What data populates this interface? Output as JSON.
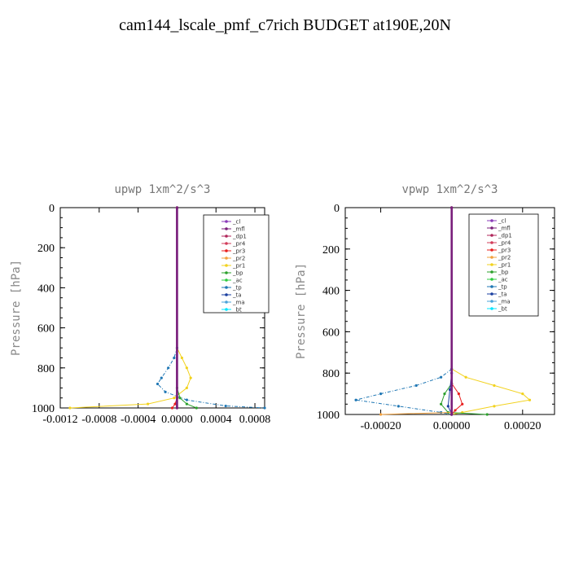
{
  "page": {
    "title": "cam144_lscale_pmf_c7rich  BUDGET at190E,20N"
  },
  "legend_colors": {
    "_cl": "#8a3ab9",
    "_mfl": "#7a1f7a",
    "_dp1": "#b0265a",
    "_pr4": "#d23c5a",
    "_pr3": "#e81e1e",
    "_pr2": "#f2a03c",
    "_pr1": "#f2d21e",
    "_bp": "#2ca02c",
    "_ac": "#2ecc40",
    "_tp": "#1f77b4",
    "_ta": "#1a3fa0",
    "_ma": "#4aa3d9",
    "_bt": "#00e5ff"
  },
  "chart_data": [
    {
      "type": "line",
      "title": "upwp  1xm^2/s^3",
      "xlabel": "",
      "ylabel": "Pressure [hPa]",
      "xlim": [
        -0.0012,
        0.0009
      ],
      "ylim": [
        1000,
        0
      ],
      "xticks": [
        -0.0012,
        -0.0008,
        -0.0004,
        0.0,
        0.0004,
        0.0008
      ],
      "xtick_labels": [
        "-0.0012",
        "-0.0008",
        "-0.0004",
        "0.0000",
        "0.0004",
        "0.0008"
      ],
      "yticks": [
        0,
        200,
        400,
        600,
        800,
        1000
      ],
      "legend": [
        "_cl",
        "_mfl",
        "_dp1",
        "_pr4",
        "_pr3",
        "_pr2",
        "_pr1",
        "_bp",
        "_ac",
        "_tp",
        "_ta",
        "_ma",
        "_bt"
      ],
      "legend_position": "top-right",
      "grid": false,
      "series": [
        {
          "name": "_pr1",
          "p": [
            0,
            700,
            750,
            800,
            850,
            900,
            950,
            980,
            1000
          ],
          "x": [
            0,
            0,
            5e-05,
            0.0001,
            0.00014,
            0.0001,
            -3e-05,
            -0.0003,
            -0.0011
          ]
        },
        {
          "name": "_tp",
          "p": [
            0,
            700,
            750,
            800,
            850,
            880,
            920,
            960,
            990,
            1000
          ],
          "x": [
            0,
            0,
            -3e-05,
            -9e-05,
            -0.00016,
            -0.0002,
            -0.00012,
            0.0001,
            0.0005,
            0.0009
          ]
        },
        {
          "name": "_bp",
          "p": [
            0,
            900,
            950,
            980,
            1000
          ],
          "x": [
            0,
            0,
            3e-05,
            0.0001,
            0.0002
          ]
        },
        {
          "name": "_pr3",
          "p": [
            0,
            950,
            980,
            1000
          ],
          "x": [
            0,
            0,
            -2e-05,
            -5e-05
          ]
        },
        {
          "name": "_cl",
          "p": [
            0,
            1000
          ],
          "x": [
            0,
            0
          ]
        },
        {
          "name": "_mfl",
          "p": [
            0,
            1000
          ],
          "x": [
            0,
            0
          ]
        }
      ]
    },
    {
      "type": "line",
      "title": "vpwp  1xm^2/s^3",
      "xlabel": "",
      "ylabel": "Pressure [hPa]",
      "xlim": [
        -0.0003,
        0.00029
      ],
      "ylim": [
        1000,
        0
      ],
      "xticks": [
        -0.0002,
        0.0,
        0.0002
      ],
      "xtick_labels": [
        "-0.00020",
        "0.00000",
        "0.00020"
      ],
      "yticks": [
        0,
        200,
        400,
        600,
        800,
        1000
      ],
      "legend": [
        "_cl",
        "_mfl",
        "_dp1",
        "_pr4",
        "_pr3",
        "_pr2",
        "_pr1",
        "_bp",
        "_ac",
        "_tp",
        "_ta",
        "_ma",
        "_bt"
      ],
      "legend_position": "top-right",
      "grid": false,
      "series": [
        {
          "name": "_pr1",
          "p": [
            0,
            780,
            820,
            860,
            900,
            930,
            960,
            990,
            1000
          ],
          "x": [
            0,
            0,
            4e-05,
            0.00012,
            0.0002,
            0.00022,
            0.00012,
            3e-05,
            0
          ]
        },
        {
          "name": "_tp",
          "p": [
            0,
            780,
            820,
            860,
            900,
            930,
            960,
            990,
            1000
          ],
          "x": [
            0,
            0,
            -3e-05,
            -0.0001,
            -0.0002,
            -0.00027,
            -0.00015,
            -3e-05,
            0
          ]
        },
        {
          "name": "_bp",
          "p": [
            0,
            850,
            900,
            950,
            990,
            1000
          ],
          "x": [
            0,
            0,
            -2e-05,
            -3e-05,
            -1e-05,
            0.0001
          ]
        },
        {
          "name": "_pr3",
          "p": [
            0,
            850,
            900,
            950,
            980,
            1000
          ],
          "x": [
            0,
            0,
            2e-05,
            3e-05,
            1e-05,
            0
          ]
        },
        {
          "name": "_ta",
          "p": [
            0,
            800,
            880,
            960,
            1000
          ],
          "x": [
            0,
            0,
            -5e-06,
            -1e-05,
            0
          ]
        },
        {
          "name": "_pr2",
          "p": [
            0,
            990,
            1000
          ],
          "x": [
            0,
            0,
            -0.0002
          ]
        },
        {
          "name": "_cl",
          "p": [
            0,
            1000
          ],
          "x": [
            0,
            0
          ]
        },
        {
          "name": "_mfl",
          "p": [
            0,
            1000
          ],
          "x": [
            0,
            0
          ]
        }
      ]
    }
  ]
}
